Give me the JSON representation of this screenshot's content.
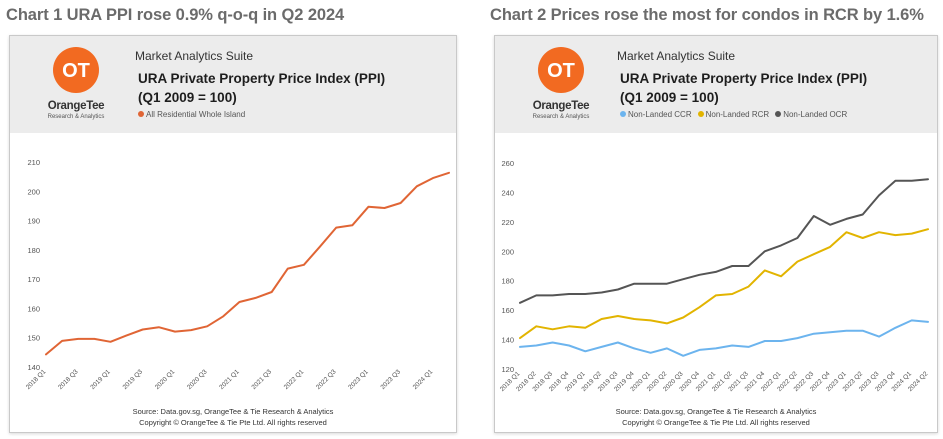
{
  "headline_left": "Chart 1 URA PPI rose 0.9% q-o-q in Q2 2024",
  "headline_right": "Chart 2 Prices rose the most for condos in RCR by 1.6%",
  "brand": {
    "name": "OrangeTee",
    "tagline": "Research & Analytics",
    "color": "#f26a21"
  },
  "suite": "Market Analytics Suite",
  "chart_title_line1": "URA Private Property Price Index (PPI)",
  "chart_title_line2": "(Q1 2009 = 100)",
  "source_line": "Source: Data.gov.sg, OrangeTee & Tie Research & Analytics",
  "copyright_line": "Copyright © OrangeTee & Tie Pte Ltd. All rights reserved",
  "chart_data": [
    {
      "type": "line",
      "ylim": [
        140,
        210
      ],
      "yticks": [
        140,
        150,
        160,
        170,
        180,
        190,
        200,
        210
      ],
      "x": [
        "2018 Q1",
        "2018 Q2",
        "2018 Q3",
        "2018 Q4",
        "2019 Q1",
        "2019 Q2",
        "2019 Q3",
        "2019 Q4",
        "2020 Q1",
        "2020 Q2",
        "2020 Q3",
        "2020 Q4",
        "2021 Q1",
        "2021 Q2",
        "2021 Q3",
        "2021 Q4",
        "2022 Q1",
        "2022 Q2",
        "2022 Q3",
        "2022 Q4",
        "2023 Q1",
        "2023 Q2",
        "2023 Q3",
        "2023 Q4",
        "2024 Q1",
        "2024 Q2"
      ],
      "xtick_labels": [
        "2018 Q1",
        "2018 Q3",
        "2019 Q1",
        "2019 Q3",
        "2020 Q1",
        "2020 Q3",
        "2021 Q1",
        "2021 Q3",
        "2022 Q1",
        "2022 Q3",
        "2023 Q1",
        "2023 Q3",
        "2024 Q1"
      ],
      "series": [
        {
          "name": "All Residential Whole Island",
          "color": "#e06535",
          "values": [
            144.3,
            148.9,
            149.6,
            149.6,
            148.6,
            150.8,
            152.8,
            153.6,
            152.1,
            152.6,
            153.9,
            157.3,
            162.2,
            163.6,
            165.6,
            173.6,
            174.9,
            181.1,
            187.6,
            188.4,
            194.7,
            194.3,
            196.0,
            201.7,
            204.5,
            206.3
          ]
        }
      ],
      "grid": false,
      "legend": "top-left"
    },
    {
      "type": "line",
      "ylim": [
        120,
        260
      ],
      "yticks": [
        120,
        140,
        160,
        180,
        200,
        220,
        240,
        260
      ],
      "x": [
        "2018 Q1",
        "2018 Q2",
        "2018 Q3",
        "2018 Q4",
        "2019 Q1",
        "2019 Q2",
        "2019 Q3",
        "2019 Q4",
        "2020 Q1",
        "2020 Q2",
        "2020 Q3",
        "2020 Q4",
        "2021 Q1",
        "2021 Q2",
        "2021 Q3",
        "2021 Q4",
        "2022 Q1",
        "2022 Q2",
        "2022 Q3",
        "2022 Q4",
        "2023 Q1",
        "2023 Q2",
        "2023 Q3",
        "2023 Q4",
        "2024 Q1",
        "2024 Q2"
      ],
      "xtick_labels": [
        "2018 Q1",
        "2018 Q2",
        "2018 Q3",
        "2018 Q4",
        "2019 Q1",
        "2019 Q2",
        "2019 Q3",
        "2019 Q4",
        "2020 Q1",
        "2020 Q2",
        "2020 Q3",
        "2020 Q4",
        "2021 Q1",
        "2021 Q2",
        "2021 Q3",
        "2021 Q4",
        "2022 Q1",
        "2022 Q2",
        "2022 Q3",
        "2022 Q4",
        "2023 Q1",
        "2023 Q2",
        "2023 Q3",
        "2023 Q4",
        "2024 Q1",
        "2024 Q2"
      ],
      "series": [
        {
          "name": "Non-Landed CCR",
          "color": "#6cb4ee",
          "values": [
            135,
            136,
            138,
            136,
            132,
            135,
            138,
            134,
            131,
            134,
            129,
            133,
            134,
            136,
            135,
            139,
            139,
            141,
            144,
            145,
            146,
            146,
            142,
            148,
            153,
            152
          ]
        },
        {
          "name": "Non-Landed RCR",
          "color": "#e2b400",
          "values": [
            141,
            149,
            147,
            149,
            148,
            154,
            156,
            154,
            153,
            151,
            155,
            162,
            170,
            171,
            176,
            187,
            183,
            193,
            198,
            203,
            213,
            209,
            213,
            211,
            212,
            215
          ]
        },
        {
          "name": "Non-Landed OCR",
          "color": "#555555",
          "values": [
            165,
            170,
            170,
            171,
            171,
            172,
            174,
            178,
            178,
            178,
            181,
            184,
            186,
            190,
            190,
            200,
            204,
            209,
            224,
            218,
            222,
            225,
            238,
            248,
            248,
            249
          ]
        }
      ],
      "grid": false,
      "legend": "top-left"
    }
  ]
}
